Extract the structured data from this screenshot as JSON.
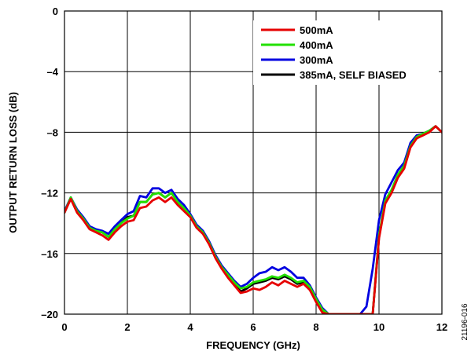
{
  "chart_data": {
    "type": "line",
    "title": "",
    "xlabel": "FREQUENCY (GHz)",
    "ylabel": "OUTPUT RETURN LOSS (dB)",
    "xlim": [
      0,
      12
    ],
    "ylim": [
      -20,
      0
    ],
    "xticks": [
      "0",
      "2",
      "4",
      "6",
      "8",
      "10",
      "12"
    ],
    "yticks": [
      "0",
      "–4",
      "–8",
      "–12",
      "–16",
      "–20"
    ],
    "grid": true,
    "legend_position": "top-right",
    "series": [
      {
        "name": "500mA",
        "color": "#e60000",
        "x": [
          0,
          0.2,
          0.4,
          0.6,
          0.8,
          1.0,
          1.2,
          1.4,
          1.6,
          1.8,
          2.0,
          2.2,
          2.4,
          2.6,
          2.8,
          3.0,
          3.2,
          3.4,
          3.6,
          3.8,
          4.0,
          4.2,
          4.4,
          4.6,
          4.8,
          5.0,
          5.2,
          5.4,
          5.6,
          5.8,
          6.0,
          6.2,
          6.4,
          6.6,
          6.8,
          7.0,
          7.2,
          7.4,
          7.6,
          7.8,
          8.0,
          8.2,
          8.4,
          9.6,
          9.8,
          10.0,
          10.2,
          10.4,
          10.6,
          10.8,
          11.0,
          11.2,
          11.4,
          11.6,
          11.8,
          12.0
        ],
        "y": [
          -13.3,
          -12.4,
          -13.3,
          -13.8,
          -14.4,
          -14.6,
          -14.8,
          -15.1,
          -14.6,
          -14.2,
          -13.9,
          -13.8,
          -13.0,
          -12.9,
          -12.5,
          -12.3,
          -12.6,
          -12.3,
          -12.8,
          -13.2,
          -13.6,
          -14.3,
          -14.7,
          -15.4,
          -16.3,
          -17.0,
          -17.6,
          -18.1,
          -18.6,
          -18.5,
          -18.3,
          -18.4,
          -18.2,
          -17.9,
          -18.1,
          -17.8,
          -18.0,
          -18.2,
          -18.0,
          -18.4,
          -19.2,
          -19.9,
          -20.0,
          -20.0,
          -20.0,
          -15.0,
          -12.7,
          -12.0,
          -11.0,
          -10.4,
          -9.0,
          -8.4,
          -8.2,
          -8.0,
          -7.6,
          -8.0
        ]
      },
      {
        "name": "400mA",
        "color": "#22e000",
        "x": [
          0,
          0.2,
          0.4,
          0.6,
          0.8,
          1.0,
          1.2,
          1.4,
          1.6,
          1.8,
          2.0,
          2.2,
          2.4,
          2.6,
          2.8,
          3.0,
          3.2,
          3.4,
          3.6,
          3.8,
          4.0,
          4.2,
          4.4,
          4.6,
          4.8,
          5.0,
          5.2,
          5.4,
          5.6,
          5.8,
          6.0,
          6.2,
          6.4,
          6.6,
          6.8,
          7.0,
          7.2,
          7.4,
          7.6,
          7.8,
          8.0,
          8.2,
          8.4,
          9.6,
          9.8,
          10.0,
          10.2,
          10.4,
          10.6,
          10.8,
          11.0,
          11.2,
          11.4,
          11.6,
          11.8,
          12.0
        ],
        "y": [
          -13.3,
          -12.3,
          -13.2,
          -13.7,
          -14.3,
          -14.5,
          -14.6,
          -14.9,
          -14.4,
          -14.0,
          -13.7,
          -13.5,
          -12.6,
          -12.6,
          -12.1,
          -12.0,
          -12.3,
          -12.0,
          -12.6,
          -13.0,
          -13.5,
          -14.2,
          -14.6,
          -15.3,
          -16.2,
          -16.9,
          -17.4,
          -17.9,
          -18.3,
          -18.2,
          -17.9,
          -17.8,
          -17.7,
          -17.5,
          -17.6,
          -17.4,
          -17.6,
          -17.9,
          -17.8,
          -18.2,
          -19.0,
          -19.7,
          -20.0,
          -20.0,
          -20.0,
          -14.8,
          -12.5,
          -11.8,
          -10.8,
          -10.2,
          -8.9,
          -8.3,
          -8.1,
          -7.9,
          -7.6,
          -8.0
        ]
      },
      {
        "name": "300mA",
        "color": "#0000e0",
        "x": [
          0,
          0.2,
          0.4,
          0.6,
          0.8,
          1.0,
          1.2,
          1.4,
          1.6,
          1.8,
          2.0,
          2.2,
          2.4,
          2.6,
          2.8,
          3.0,
          3.2,
          3.4,
          3.6,
          3.8,
          4.0,
          4.2,
          4.4,
          4.6,
          4.8,
          5.0,
          5.2,
          5.4,
          5.6,
          5.8,
          6.0,
          6.2,
          6.4,
          6.6,
          6.8,
          7.0,
          7.2,
          7.4,
          7.6,
          7.8,
          8.0,
          8.2,
          8.4,
          9.4,
          9.6,
          9.8,
          10.0,
          10.2,
          10.4,
          10.6,
          10.8,
          11.0,
          11.2,
          11.4,
          11.6,
          11.8,
          12.0
        ],
        "y": [
          -13.2,
          -12.3,
          -13.1,
          -13.6,
          -14.2,
          -14.4,
          -14.5,
          -14.7,
          -14.2,
          -13.8,
          -13.4,
          -13.2,
          -12.2,
          -12.3,
          -11.7,
          -11.7,
          -12.0,
          -11.8,
          -12.4,
          -12.8,
          -13.4,
          -14.1,
          -14.5,
          -15.2,
          -16.1,
          -16.8,
          -17.3,
          -17.8,
          -18.2,
          -18.0,
          -17.6,
          -17.3,
          -17.2,
          -16.9,
          -17.1,
          -16.9,
          -17.2,
          -17.6,
          -17.6,
          -18.1,
          -18.9,
          -19.6,
          -20.0,
          -20.0,
          -19.5,
          -17.0,
          -13.8,
          -12.1,
          -11.3,
          -10.5,
          -10.0,
          -8.7,
          -8.2,
          -8.1,
          -7.9,
          -7.6,
          -8.0
        ]
      },
      {
        "name": "385mA, SELF BIASED",
        "color": "#000000",
        "x": [
          0,
          0.2,
          0.4,
          0.6,
          0.8,
          1.0,
          1.2,
          1.4,
          1.6,
          1.8,
          2.0,
          2.2,
          2.4,
          2.6,
          2.8,
          3.0,
          3.2,
          3.4,
          3.6,
          3.8,
          4.0,
          4.2,
          4.4,
          4.6,
          4.8,
          5.0,
          5.2,
          5.4,
          5.6,
          5.8,
          6.0,
          6.2,
          6.4,
          6.6,
          6.8,
          7.0,
          7.2,
          7.4,
          7.6,
          7.8,
          8.0,
          8.2,
          8.4,
          9.6,
          9.8,
          10.0,
          10.2,
          10.4,
          10.6,
          10.8,
          11.0,
          11.2,
          11.4,
          11.6,
          11.8,
          12.0
        ],
        "y": [
          -13.3,
          -12.3,
          -13.2,
          -13.7,
          -14.3,
          -14.5,
          -14.6,
          -14.9,
          -14.4,
          -14.0,
          -13.6,
          -13.5,
          -12.6,
          -12.6,
          -12.1,
          -12.0,
          -12.3,
          -12.0,
          -12.6,
          -13.0,
          -13.5,
          -14.2,
          -14.6,
          -15.3,
          -16.2,
          -16.9,
          -17.5,
          -18.0,
          -18.5,
          -18.3,
          -18.0,
          -17.9,
          -17.8,
          -17.6,
          -17.7,
          -17.5,
          -17.7,
          -18.0,
          -17.9,
          -18.3,
          -19.1,
          -19.8,
          -20.0,
          -20.0,
          -20.0,
          -14.9,
          -12.6,
          -11.9,
          -10.9,
          -10.3,
          -8.9,
          -8.3,
          -8.1,
          -7.9,
          -7.6,
          -8.0
        ]
      }
    ]
  },
  "figure_id": "21196-016"
}
